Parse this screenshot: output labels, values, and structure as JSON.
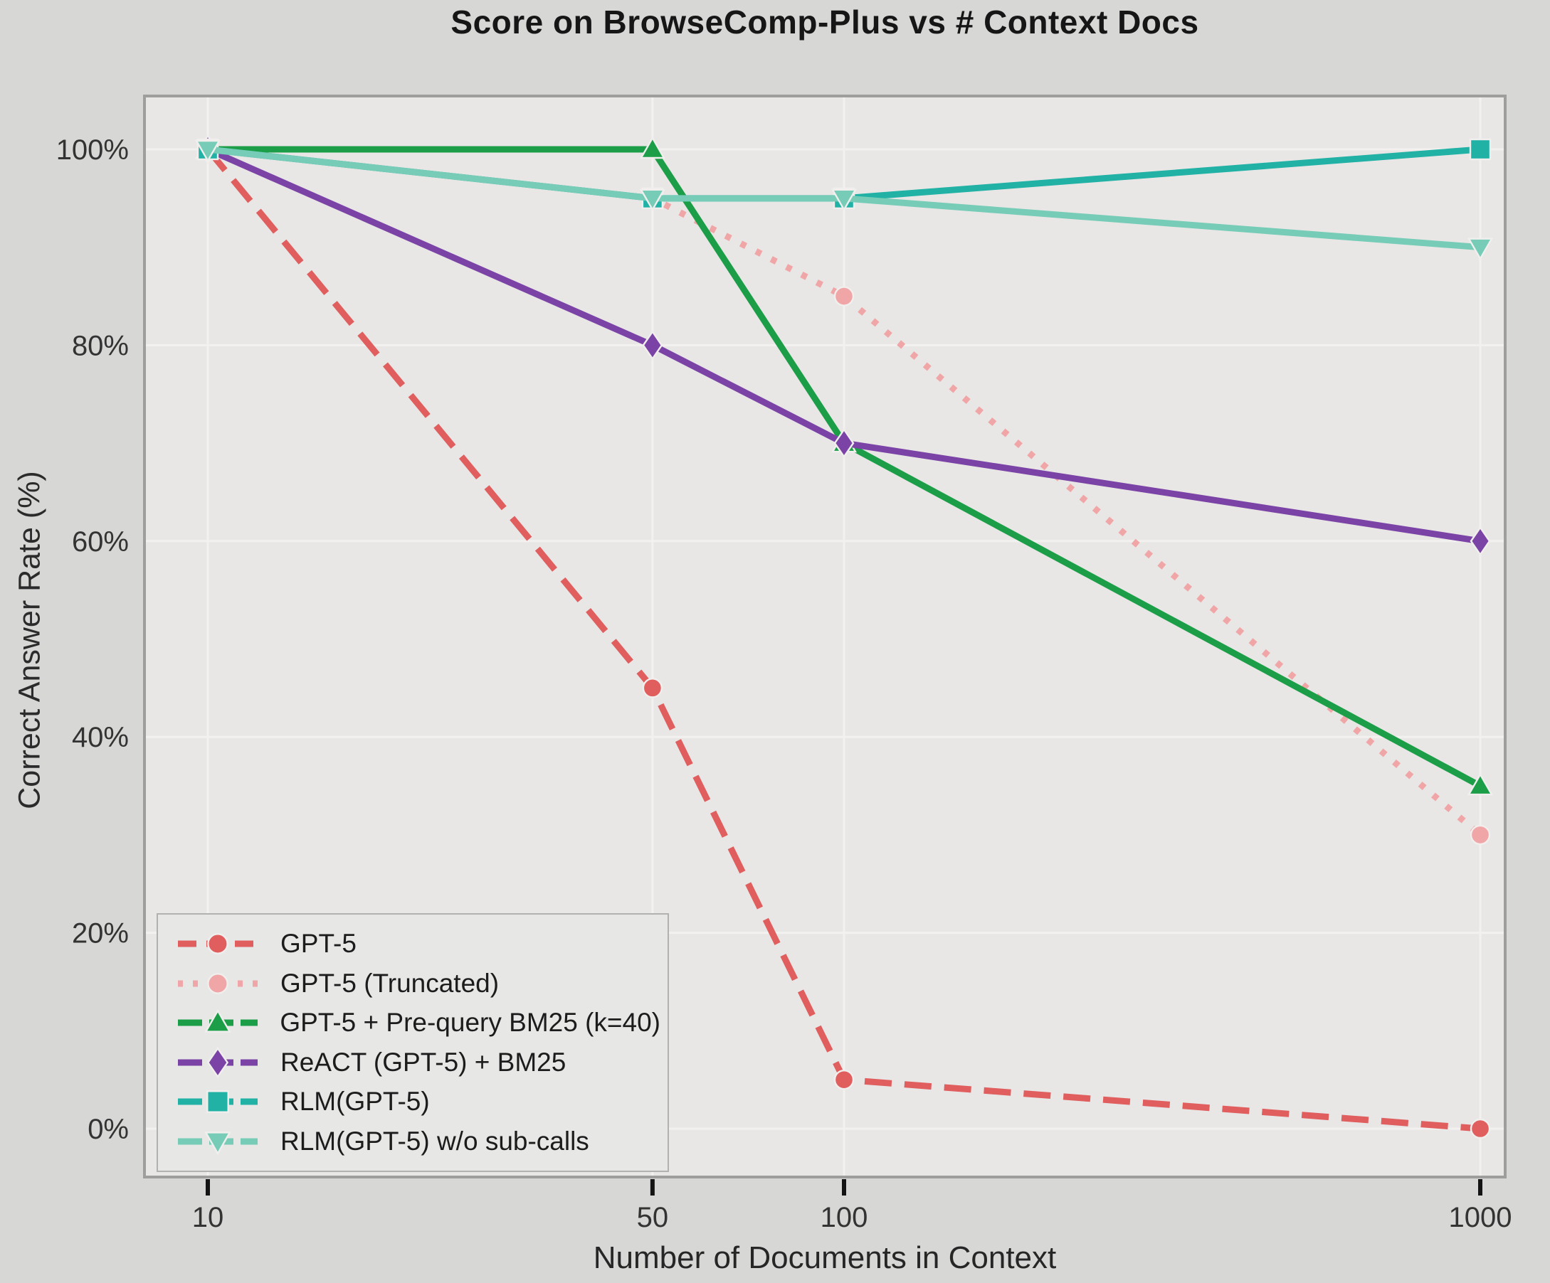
{
  "chart_data": {
    "type": "line",
    "title": "Score on BrowseComp-Plus vs # Context Docs",
    "xlabel": "Number of Documents in Context",
    "ylabel": "Correct Answer Rate (%)",
    "x": [
      10,
      50,
      100,
      1000
    ],
    "x_scale": "log",
    "x_tick_labels": [
      "10",
      "50",
      "100",
      "1000"
    ],
    "y_ticks": [
      0,
      20,
      40,
      60,
      80,
      100
    ],
    "y_tick_labels": [
      "0%",
      "20%",
      "40%",
      "60%",
      "80%",
      "100%"
    ],
    "ylim": [
      -5.5,
      105.5
    ],
    "xlim_log_pad": [
      7.9,
      1100
    ],
    "grid": "on",
    "legend_position": "lower left",
    "series": [
      {
        "name": "GPT-5",
        "values": [
          100,
          45,
          5,
          0
        ],
        "color": "#e05e5e",
        "line_style": "dashed",
        "marker": "circle"
      },
      {
        "name": "GPT-5 (Truncated)",
        "values": [
          100,
          95,
          85,
          30
        ],
        "color": "#f0a6a6",
        "line_style": "dotted",
        "marker": "circle"
      },
      {
        "name": "GPT-5 + Pre-query BM25 (k=40)",
        "values": [
          100,
          100,
          70,
          35
        ],
        "color": "#1b9e47",
        "line_style": "solid",
        "marker": "triangle-up"
      },
      {
        "name": "ReACT (GPT-5) + BM25",
        "values": [
          100,
          80,
          70,
          60
        ],
        "color": "#7b43a6",
        "line_style": "solid",
        "marker": "diamond"
      },
      {
        "name": "RLM(GPT-5)",
        "values": [
          100,
          95,
          95,
          100
        ],
        "color": "#21b1a5",
        "line_style": "solid",
        "marker": "square"
      },
      {
        "name": "RLM(GPT-5) w/o sub-calls",
        "values": [
          100,
          95,
          95,
          90
        ],
        "color": "#76ccb6",
        "line_style": "solid",
        "marker": "triangle-down"
      }
    ],
    "colors": {
      "figure_background": "#d7d7d6",
      "plot_background": "#e8e7e6",
      "gridline": "#f2f1ef",
      "plot_border": "#9e9e9d",
      "tick_mark": "#141414",
      "tick_label": "#333333",
      "marker_edge": "#f0efee"
    }
  }
}
